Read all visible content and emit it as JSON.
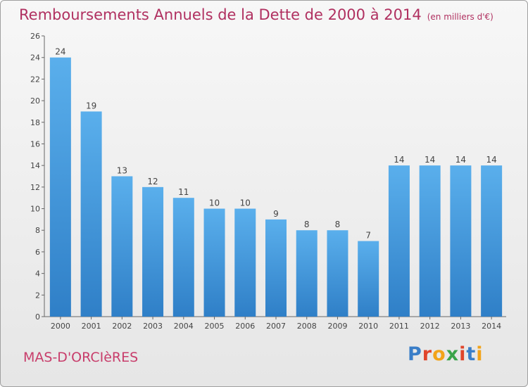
{
  "header": {
    "title": "Remboursements Annuels de la Dette de 2000 à 2014",
    "unit": "(en milliers d'€)"
  },
  "footer": {
    "city": "MAS-D'ORCIèRES",
    "logo": "Proxiti"
  },
  "colors": {
    "bar_light": "#5aafec",
    "bar_dark": "#2f7fc7",
    "title": "#b03060"
  },
  "chart_data": {
    "type": "bar",
    "title": "Remboursements Annuels de la Dette de 2000 à 2014",
    "categories": [
      "2000",
      "2001",
      "2002",
      "2003",
      "2004",
      "2005",
      "2006",
      "2007",
      "2008",
      "2009",
      "2010",
      "2011",
      "2012",
      "2013",
      "2014"
    ],
    "values": [
      24,
      19,
      13,
      12,
      11,
      10,
      10,
      9,
      8,
      8,
      7,
      14,
      14,
      14,
      14
    ],
    "ylim": [
      0,
      26
    ],
    "yticks": [
      0,
      2,
      4,
      6,
      8,
      10,
      12,
      14,
      16,
      18,
      20,
      22,
      24,
      26
    ],
    "grid": false,
    "data_labels": true
  }
}
